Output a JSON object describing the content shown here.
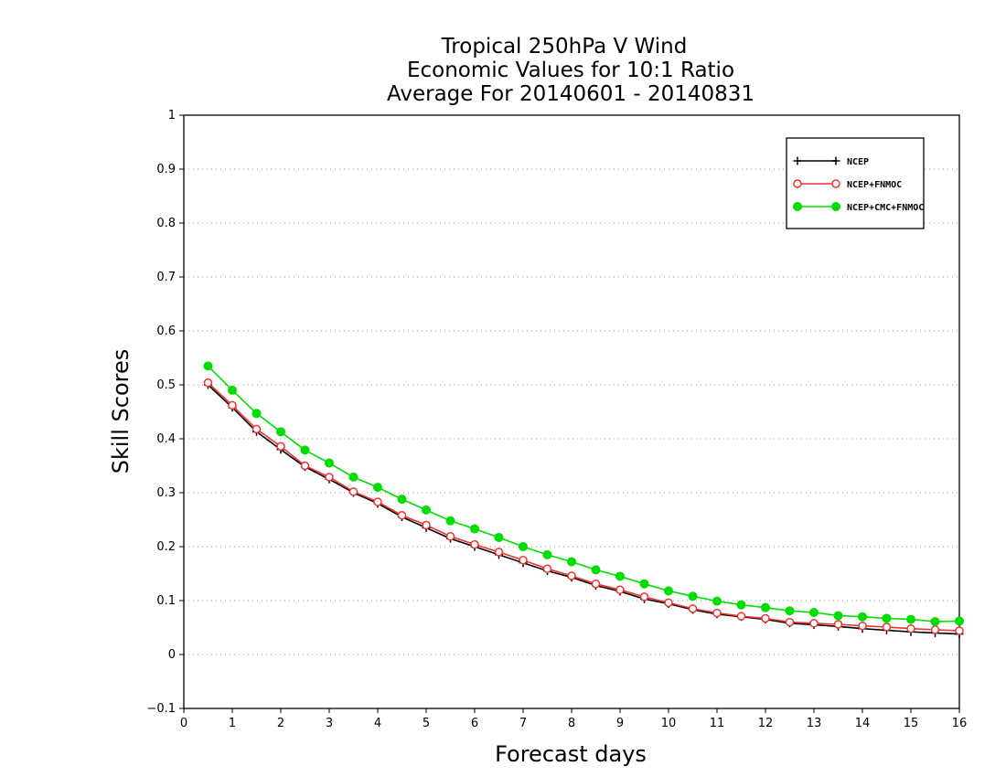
{
  "chart_data": {
    "type": "line",
    "title": [
      "Tropical 250hPa V Wind",
      "Economic Values for 10:1 Ratio",
      "Average For 20140601 - 20140831"
    ],
    "xlabel": "Forecast days",
    "ylabel": "Skill Scores",
    "xlim": [
      0,
      16
    ],
    "ylim": [
      -0.1,
      1
    ],
    "xticks": [
      0,
      1,
      2,
      3,
      4,
      5,
      6,
      7,
      8,
      9,
      10,
      11,
      12,
      13,
      14,
      15,
      16
    ],
    "yticks": [
      -0.1,
      0,
      0.1,
      0.2,
      0.3,
      0.4,
      0.5,
      0.6,
      0.7,
      0.8,
      0.9,
      1
    ],
    "grid": "horizontal-dotted",
    "legend_position": "top-right",
    "x": [
      0.5,
      1,
      1.5,
      2,
      2.5,
      3,
      3.5,
      4,
      4.5,
      5,
      5.5,
      6,
      6.5,
      7,
      7.5,
      8,
      8.5,
      9,
      9.5,
      10,
      10.5,
      11,
      11.5,
      12,
      12.5,
      13,
      13.5,
      14,
      14.5,
      15,
      15.5,
      16
    ],
    "series": [
      {
        "name": "NCEP",
        "color": "#000000",
        "marker": "plus",
        "values": [
          0.5,
          0.458,
          0.413,
          0.38,
          0.348,
          0.325,
          0.3,
          0.28,
          0.255,
          0.235,
          0.215,
          0.2,
          0.185,
          0.17,
          0.155,
          0.143,
          0.128,
          0.117,
          0.103,
          0.094,
          0.083,
          0.075,
          0.07,
          0.065,
          0.058,
          0.055,
          0.052,
          0.048,
          0.045,
          0.042,
          0.04,
          0.038
        ]
      },
      {
        "name": "NCEP+FNMOC",
        "color": "#ee3333",
        "marker": "open-circle",
        "values": [
          0.504,
          0.462,
          0.418,
          0.386,
          0.35,
          0.329,
          0.302,
          0.283,
          0.258,
          0.24,
          0.219,
          0.204,
          0.19,
          0.175,
          0.159,
          0.146,
          0.131,
          0.12,
          0.107,
          0.096,
          0.085,
          0.077,
          0.071,
          0.067,
          0.06,
          0.058,
          0.056,
          0.053,
          0.051,
          0.048,
          0.046,
          0.044
        ]
      },
      {
        "name": "NCEP+CMC+FNMOC",
        "color": "#00dd00",
        "marker": "filled-circle",
        "values": [
          0.535,
          0.49,
          0.447,
          0.413,
          0.379,
          0.355,
          0.329,
          0.31,
          0.288,
          0.268,
          0.248,
          0.233,
          0.217,
          0.2,
          0.185,
          0.172,
          0.157,
          0.145,
          0.131,
          0.118,
          0.108,
          0.099,
          0.092,
          0.087,
          0.081,
          0.078,
          0.072,
          0.07,
          0.067,
          0.065,
          0.061,
          0.062
        ]
      }
    ]
  }
}
